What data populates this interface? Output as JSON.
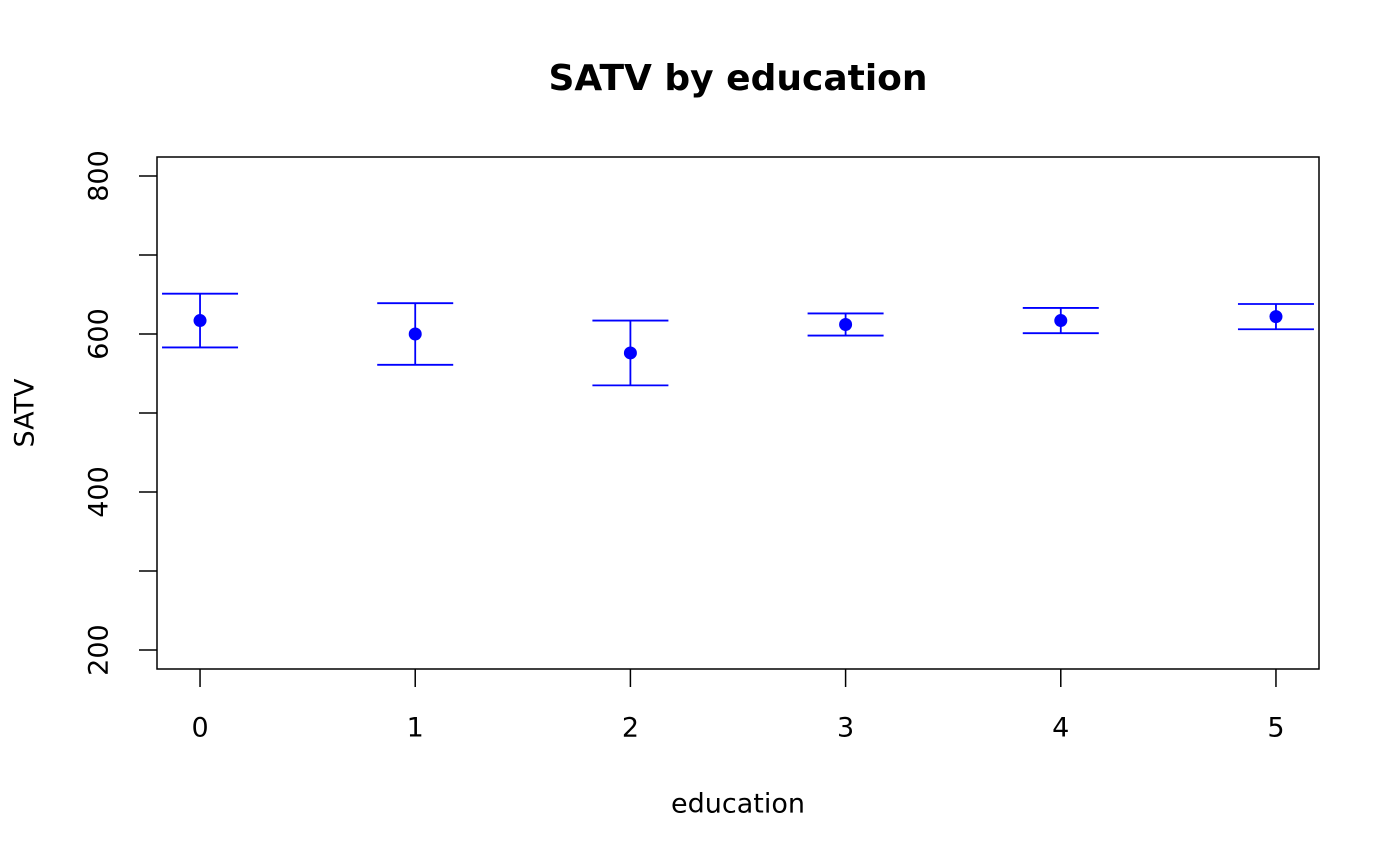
{
  "chart_data": {
    "type": "errorbar",
    "title": "SATV by education",
    "x_label": "education",
    "y_label": "SATV",
    "x": [
      0,
      1,
      2,
      3,
      4,
      5
    ],
    "series": [
      {
        "color": "#0000ff",
        "values": [
          617,
          600,
          576,
          612,
          617,
          622
        ],
        "errors": [
          34,
          39,
          41,
          14,
          16,
          16
        ]
      }
    ],
    "xlim": [
      -0.2,
      5.2
    ],
    "xticks": [
      0,
      1,
      2,
      3,
      4,
      5
    ],
    "ylim": [
      176,
      824
    ],
    "yticks": [
      200,
      400,
      600,
      800
    ],
    "yticks_minor": [
      300,
      500,
      700
    ]
  }
}
